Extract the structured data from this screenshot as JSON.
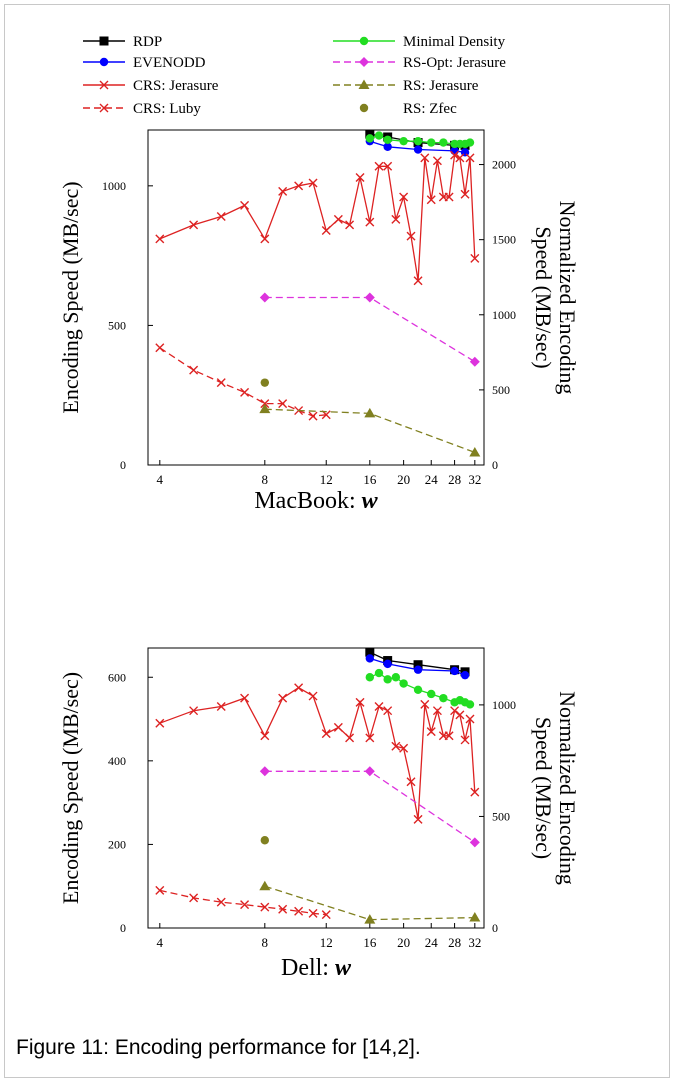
{
  "caption": "Figure 11: Encoding performance for [14,2].",
  "legend": [
    {
      "name": "RDP",
      "color": "#000000",
      "dash": "solid",
      "marker": "square"
    },
    {
      "name": "EVENODD",
      "color": "#0000ff",
      "dash": "solid",
      "marker": "circle"
    },
    {
      "name": "CRS: Jerasure",
      "color": "#dd2222",
      "dash": "solid",
      "marker": "x"
    },
    {
      "name": "CRS: Luby",
      "color": "#dd2222",
      "dash": "dash",
      "marker": "x"
    },
    {
      "name": "Minimal Density",
      "color": "#22dd22",
      "dash": "solid",
      "marker": "circle"
    },
    {
      "name": "RS-Opt: Jerasure",
      "color": "#dd33dd",
      "dash": "dash",
      "marker": "diamond"
    },
    {
      "name": "RS: Jerasure",
      "color": "#808020",
      "dash": "dash",
      "marker": "triangle"
    },
    {
      "name": "RS: Zfec",
      "color": "#808020",
      "dash": "none",
      "marker": "circle"
    }
  ],
  "chart_data": [
    {
      "type": "line",
      "xlabel_prefix": "MacBook:",
      "xlabel_var": "w",
      "ylabel": "Encoding Speed (MB/sec)",
      "y2label_line1": "Normalized Encoding",
      "y2label_line2": "Speed (MB/sec)",
      "x_scale": "log2",
      "xlim": [
        3.7,
        34
      ],
      "x_ticks": [
        4,
        8,
        12,
        16,
        20,
        24,
        28,
        32
      ],
      "ylim": [
        0,
        1200
      ],
      "y_ticks": [
        0,
        500,
        1000
      ],
      "y2lim": [
        0,
        2230
      ],
      "y2_ticks": [
        0,
        500,
        1000,
        1500,
        2000
      ],
      "series": [
        {
          "name": "RDP",
          "x": [
            16,
            18,
            22,
            28,
            30
          ],
          "y": [
            1185,
            1175,
            1155,
            1145,
            1145
          ]
        },
        {
          "name": "EVENODD",
          "x": [
            16,
            18,
            22,
            28,
            30
          ],
          "y": [
            1160,
            1140,
            1130,
            1125,
            1120
          ]
        },
        {
          "name": "Minimal Density",
          "x": [
            16,
            17,
            18,
            20,
            22,
            24,
            26,
            28,
            29,
            30,
            31
          ],
          "y": [
            1170,
            1180,
            1165,
            1160,
            1160,
            1155,
            1155,
            1150,
            1150,
            1150,
            1155
          ]
        },
        {
          "name": "CRS: Jerasure",
          "x": [
            4,
            5,
            6,
            7,
            8,
            9,
            10,
            11,
            12,
            13,
            14,
            15,
            16,
            17,
            18,
            19,
            20,
            21,
            22,
            23,
            24,
            25,
            26,
            27,
            28,
            29,
            30,
            31,
            32
          ],
          "y": [
            810,
            860,
            890,
            930,
            810,
            980,
            1000,
            1010,
            840,
            880,
            860,
            1030,
            870,
            1070,
            1070,
            880,
            960,
            820,
            660,
            1100,
            950,
            1090,
            960,
            960,
            1110,
            1100,
            970,
            1100,
            740
          ]
        },
        {
          "name": "CRS: Luby",
          "x": [
            4,
            5,
            6,
            7,
            8,
            9,
            10,
            11,
            12
          ],
          "y": [
            420,
            340,
            295,
            260,
            220,
            220,
            195,
            175,
            180
          ]
        },
        {
          "name": "RS-Opt: Jerasure",
          "x": [
            8,
            16,
            32
          ],
          "y": [
            600,
            600,
            370
          ]
        },
        {
          "name": "RS: Jerasure",
          "x": [
            8,
            16,
            32
          ],
          "y": [
            200,
            185,
            45
          ]
        },
        {
          "name": "RS: Zfec",
          "x": [
            8
          ],
          "y": [
            295
          ]
        }
      ]
    },
    {
      "type": "line",
      "xlabel_prefix": "Dell:",
      "xlabel_var": "w",
      "ylabel": "Encoding Speed (MB/sec)",
      "y2label_line1": "Normalized Encoding",
      "y2label_line2": "Speed (MB/sec)",
      "x_scale": "log2",
      "xlim": [
        3.7,
        34
      ],
      "x_ticks": [
        4,
        8,
        12,
        16,
        20,
        24,
        28,
        32
      ],
      "ylim": [
        0,
        670
      ],
      "y_ticks": [
        0,
        200,
        400,
        600
      ],
      "y2lim": [
        0,
        1255
      ],
      "y2_ticks": [
        0,
        500,
        1000
      ],
      "series": [
        {
          "name": "RDP",
          "x": [
            16,
            18,
            22,
            28,
            30
          ],
          "y": [
            660,
            640,
            630,
            618,
            613
          ]
        },
        {
          "name": "EVENODD",
          "x": [
            16,
            18,
            22,
            28,
            30
          ],
          "y": [
            645,
            632,
            618,
            615,
            605
          ]
        },
        {
          "name": "Minimal Density",
          "x": [
            16,
            17,
            18,
            19,
            20,
            22,
            24,
            26,
            28,
            29,
            30,
            31
          ],
          "y": [
            600,
            610,
            595,
            600,
            585,
            570,
            560,
            550,
            540,
            545,
            540,
            535
          ]
        },
        {
          "name": "CRS: Jerasure",
          "x": [
            4,
            5,
            6,
            7,
            8,
            9,
            10,
            11,
            12,
            13,
            14,
            15,
            16,
            17,
            18,
            19,
            20,
            21,
            22,
            23,
            24,
            25,
            26,
            27,
            28,
            29,
            30,
            31,
            32
          ],
          "y": [
            490,
            520,
            530,
            550,
            460,
            550,
            575,
            555,
            465,
            480,
            455,
            540,
            455,
            530,
            520,
            435,
            430,
            350,
            260,
            535,
            470,
            520,
            460,
            460,
            520,
            510,
            450,
            500,
            325
          ]
        },
        {
          "name": "CRS: Luby",
          "x": [
            4,
            5,
            6,
            7,
            8,
            9,
            10,
            11,
            12
          ],
          "y": [
            90,
            72,
            62,
            56,
            50,
            45,
            40,
            35,
            32
          ]
        },
        {
          "name": "RS-Opt: Jerasure",
          "x": [
            8,
            16,
            32
          ],
          "y": [
            375,
            375,
            205
          ]
        },
        {
          "name": "RS: Jerasure",
          "x": [
            8,
            16,
            32
          ],
          "y": [
            100,
            20,
            25
          ]
        },
        {
          "name": "RS: Zfec",
          "x": [
            8
          ],
          "y": [
            210
          ]
        }
      ]
    }
  ]
}
